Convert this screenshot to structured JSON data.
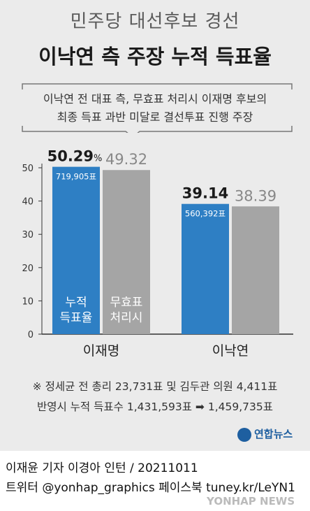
{
  "header": {
    "title_line1": "민주당 대선후보 경선",
    "title_line2": "이낙연 측 주장 누적 득표율"
  },
  "callout": {
    "line1": "이낙연 전 대표 측, 무효표 처리시 이재명 후보의",
    "line2": "최종 득표 과반 미달로 결선투표 진행 주장"
  },
  "chart_data": {
    "type": "bar",
    "categories": [
      "이재명",
      "이낙연"
    ],
    "ylim": [
      0,
      50
    ],
    "yticks": [
      0,
      10,
      20,
      30,
      40,
      50
    ],
    "unit": "%",
    "series": [
      {
        "name": "누적 득표율",
        "label": "누적\n득표율",
        "values": [
          50.29,
          39.14
        ],
        "value_labels": [
          "50.29",
          "39.14"
        ],
        "vote_labels": [
          "719,905표",
          "560,392표"
        ],
        "color": "#2e7fc4"
      },
      {
        "name": "무효표 처리시",
        "label": "무효표\n처리시",
        "values": [
          49.32,
          38.39
        ],
        "value_labels": [
          "49.32",
          "38.39"
        ],
        "color": "#a5a5a5"
      }
    ],
    "value_label_colors": {
      "primary": "#1a1a1a",
      "secondary": "#888888"
    }
  },
  "footnote": {
    "line1": "※ 정세균 전 총리 23,731표 및 김두관 의원 4,411표",
    "line2_a": "반영시 누적 득표수 1,431,593표",
    "arrow": "➡",
    "line2_b": "1,459,735표"
  },
  "logo": {
    "text": "연합뉴스"
  },
  "source": {
    "line1": "이재윤 기자 이경아 인턴 / 20211011",
    "line2": "트위터 @yonhap_graphics  페이스북 tuney.kr/LeYN1"
  },
  "watermark": "YONHAP NEWS"
}
